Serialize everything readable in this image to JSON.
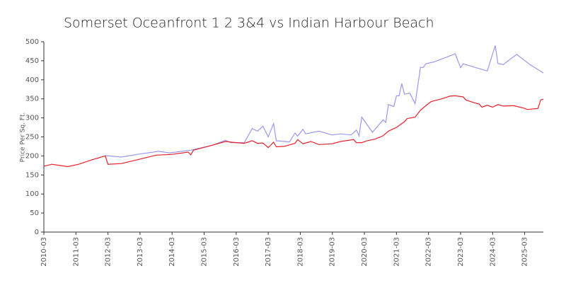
{
  "chart_data": {
    "type": "line",
    "title": "Somerset Oceanfront 1 2 3&4 vs Indian Harbour Beach",
    "y_label": "Price Per Sq. Ft.",
    "xlim": [
      "2010-03",
      "2025-10"
    ],
    "xticks": [
      "2010-03",
      "2011-03",
      "2012-03",
      "2013-03",
      "2014-03",
      "2015-03",
      "2016-03",
      "2017-03",
      "2018-03",
      "2019-03",
      "2020-03",
      "2021-03",
      "2022-03",
      "2023-03",
      "2024-03",
      "2025-03"
    ],
    "ylim": [
      0,
      500
    ],
    "yticks": [
      0,
      50,
      100,
      150,
      200,
      250,
      300,
      350,
      400,
      450,
      500
    ],
    "series": [
      {
        "color": "#9999ee",
        "x": [
          "2012-02",
          "2012-08",
          "2013-02",
          "2013-10",
          "2014-02",
          "2014-10",
          "2015-06",
          "2015-11",
          "2016-01",
          "2016-06",
          "2016-09",
          "2016-11",
          "2017-01",
          "2017-03",
          "2017-05",
          "2017-06",
          "2017-11",
          "2018-01",
          "2018-02",
          "2018-04",
          "2018-05",
          "2018-10",
          "2019-03",
          "2019-06",
          "2019-10",
          "2019-12",
          "2020-01",
          "2020-02",
          "2020-06",
          "2020-10",
          "2020-11",
          "2020-12",
          "2021-02",
          "2021-03",
          "2021-04",
          "2021-05",
          "2021-06",
          "2021-08",
          "2021-10",
          "2021-12",
          "2022-01",
          "2022-02",
          "2022-05",
          "2023-01",
          "2023-03",
          "2023-04",
          "2024-01",
          "2024-04",
          "2024-05",
          "2024-07",
          "2024-12",
          "2025-05",
          "2025-10"
        ],
        "values": [
          201,
          197,
          204,
          212,
          208,
          215,
          228,
          241,
          235,
          235,
          272,
          265,
          278,
          250,
          285,
          240,
          237,
          260,
          252,
          270,
          258,
          265,
          255,
          258,
          255,
          268,
          253,
          302,
          262,
          295,
          288,
          335,
          330,
          358,
          358,
          390,
          362,
          365,
          337,
          433,
          432,
          442,
          447,
          468,
          432,
          442,
          423,
          490,
          443,
          440,
          467,
          440,
          418
        ]
      },
      {
        "color": "#e8202a",
        "x": [
          "2010-03",
          "2010-06",
          "2010-09",
          "2010-12",
          "2011-04",
          "2011-09",
          "2012-02",
          "2012-03",
          "2012-08",
          "2013-02",
          "2013-09",
          "2014-03",
          "2014-09",
          "2014-10",
          "2014-11",
          "2015-06",
          "2015-11",
          "2016-03",
          "2016-06",
          "2016-09",
          "2016-11",
          "2017-01",
          "2017-03",
          "2017-05",
          "2017-06",
          "2017-09",
          "2018-01",
          "2018-02",
          "2018-04",
          "2018-07",
          "2018-10",
          "2019-03",
          "2019-06",
          "2019-11",
          "2019-12",
          "2020-02",
          "2020-04",
          "2020-07",
          "2020-10",
          "2020-12",
          "2021-03",
          "2021-06",
          "2021-07",
          "2021-10",
          "2021-12",
          "2022-02",
          "2022-04",
          "2022-08",
          "2022-11",
          "2023-01",
          "2023-04",
          "2023-05",
          "2023-08",
          "2023-10",
          "2023-11",
          "2024-01",
          "2024-03",
          "2024-05",
          "2024-07",
          "2024-11",
          "2025-03",
          "2025-04",
          "2025-08",
          "2025-09",
          "2025-10"
        ],
        "values": [
          173,
          178,
          175,
          172,
          178,
          190,
          200,
          178,
          180,
          190,
          202,
          204,
          210,
          203,
          215,
          228,
          238,
          235,
          233,
          240,
          233,
          234,
          222,
          236,
          224,
          225,
          233,
          243,
          232,
          238,
          230,
          232,
          238,
          243,
          235,
          235,
          240,
          244,
          253,
          265,
          275,
          290,
          298,
          302,
          320,
          332,
          343,
          350,
          357,
          358,
          355,
          347,
          340,
          336,
          328,
          333,
          328,
          335,
          331,
          332,
          325,
          322,
          325,
          347,
          349
        ]
      }
    ]
  }
}
